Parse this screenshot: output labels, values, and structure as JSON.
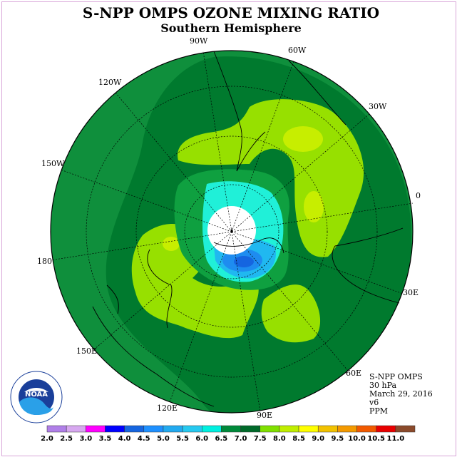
{
  "header": {
    "title": "S-NPP OMPS OZONE MIXING RATIO",
    "subtitle": "Southern Hemisphere"
  },
  "map": {
    "projection": "polar stereographic (south pole)",
    "longitude_labels": [
      {
        "text": "90W"
      },
      {
        "text": "60W"
      },
      {
        "text": "30W"
      },
      {
        "text": "0"
      },
      {
        "text": "30E"
      },
      {
        "text": "60E"
      },
      {
        "text": "90E"
      },
      {
        "text": "120E"
      },
      {
        "text": "150E"
      },
      {
        "text": "180"
      },
      {
        "text": "150W"
      },
      {
        "text": "120W"
      }
    ]
  },
  "info": {
    "instrument": "S-NPP OMPS",
    "level": "30 hPa",
    "date": "March 29, 2016",
    "version": "v6",
    "units": "PPM"
  },
  "logo": {
    "text": "NOAA"
  },
  "colorbar": {
    "ticks": [
      "2.0",
      "2.5",
      "3.0",
      "3.5",
      "4.0",
      "4.5",
      "5.0",
      "5.5",
      "6.0",
      "6.5",
      "7.0",
      "7.5",
      "8.0",
      "8.5",
      "9.0",
      "9.5",
      "10.0",
      "10.5",
      "11.0"
    ],
    "colors": [
      "#b07fe8",
      "#d7a8f0",
      "#ff00ff",
      "#0000ff",
      "#1565e0",
      "#1e90ff",
      "#22aaf0",
      "#26c9f0",
      "#00f0e0",
      "#008a3a",
      "#006a2a",
      "#80e000",
      "#c0ee00",
      "#ffff00",
      "#f2c200",
      "#f49a00",
      "#f25a00",
      "#e80000",
      "#8b4a2b"
    ]
  }
}
